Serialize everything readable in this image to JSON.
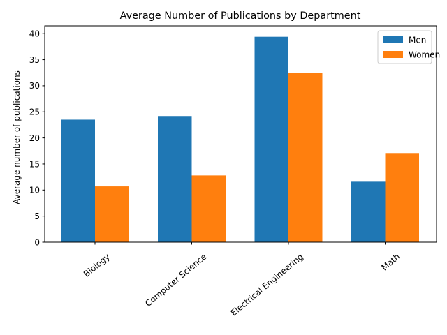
{
  "chart_data": {
    "type": "bar",
    "title": "Average Number of Publications by Department",
    "xlabel": "",
    "ylabel": "Average number of publications",
    "categories": [
      "Biology",
      "Computer Science",
      "Electrical Engineering",
      "Math"
    ],
    "series": [
      {
        "name": "Men",
        "color": "#1f77b4",
        "values": [
          23.5,
          24.2,
          39.4,
          11.6
        ]
      },
      {
        "name": "Women",
        "color": "#ff7f0e",
        "values": [
          10.7,
          12.8,
          32.4,
          17.1
        ]
      }
    ],
    "ylim": [
      0,
      41.5
    ],
    "yticks": [
      "0",
      "5",
      "10",
      "15",
      "20",
      "25",
      "30",
      "35",
      "40"
    ],
    "grid": false,
    "legend_position": "top-right",
    "xtick_rotation": "45 degrees"
  }
}
